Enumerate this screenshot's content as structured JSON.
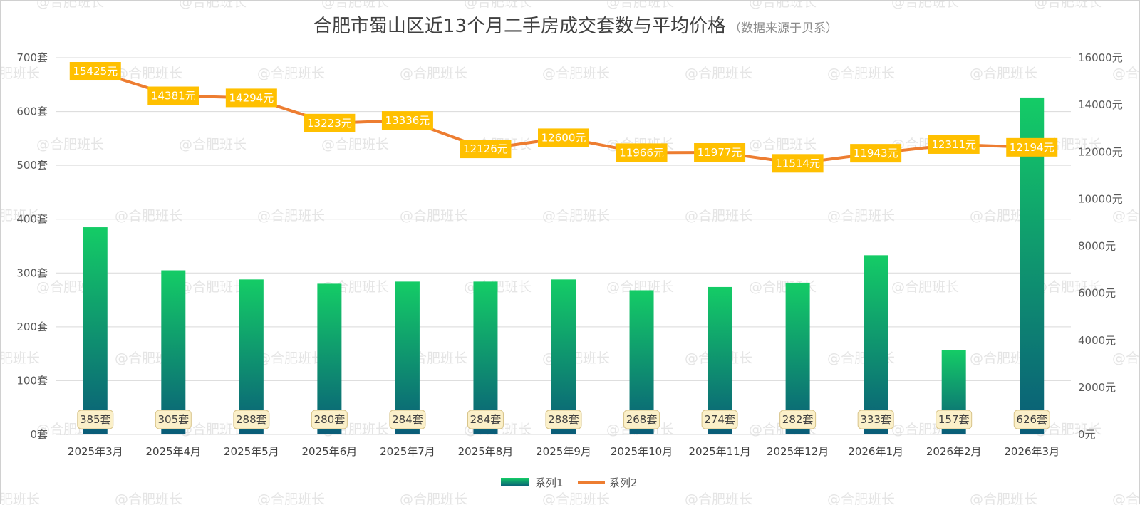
{
  "chart_data": {
    "type": "bar+line",
    "title": "合肥市蜀山区近13个月二手房成交套数与平均价格",
    "subtitle": "（数据来源于贝系）",
    "categories": [
      "2025年3月",
      "2025年4月",
      "2025年5月",
      "2025年6月",
      "2025年7月",
      "2025年8月",
      "2025年9月",
      "2025年10月",
      "2025年11月",
      "2025年12月",
      "2026年1月",
      "2026年2月",
      "2026年3月"
    ],
    "series": [
      {
        "name": "系列1",
        "type": "bar",
        "axis": "left",
        "values": [
          385,
          305,
          288,
          280,
          284,
          284,
          288,
          268,
          274,
          282,
          333,
          157,
          626
        ],
        "labels": [
          "385套",
          "305套",
          "288套",
          "280套",
          "284套",
          "284套",
          "288套",
          "268套",
          "274套",
          "282套",
          "333套",
          "157套",
          "626套"
        ],
        "color_top": "#14cc66",
        "color_bottom": "#0a5c78"
      },
      {
        "name": "系列2",
        "type": "line",
        "axis": "right",
        "values": [
          15425,
          14381,
          14294,
          13223,
          13336,
          12126,
          12600,
          11966,
          11977,
          11514,
          11943,
          12311,
          12194
        ],
        "labels": [
          "15425元",
          "14381元",
          "14294元",
          "13223元",
          "13336元",
          "12126元",
          "12600元",
          "11966元",
          "11977元",
          "11514元",
          "11943元",
          "12311元",
          "12194元"
        ],
        "color": "#ed7d31",
        "label_bg": "#ffc000"
      }
    ],
    "y_left": {
      "min": 0,
      "max": 700,
      "step": 100,
      "ticks": [
        "0套",
        "100套",
        "200套",
        "300套",
        "400套",
        "500套",
        "600套",
        "700套"
      ]
    },
    "y_right": {
      "min": 0,
      "max": 16000,
      "step": 2000,
      "ticks": [
        "0元",
        "2000元",
        "4000元",
        "6000元",
        "8000元",
        "10000元",
        "12000元",
        "14000元",
        "16000元"
      ]
    },
    "legend": [
      "系列1",
      "系列2"
    ],
    "grid": true,
    "watermark": "@合肥班长"
  }
}
